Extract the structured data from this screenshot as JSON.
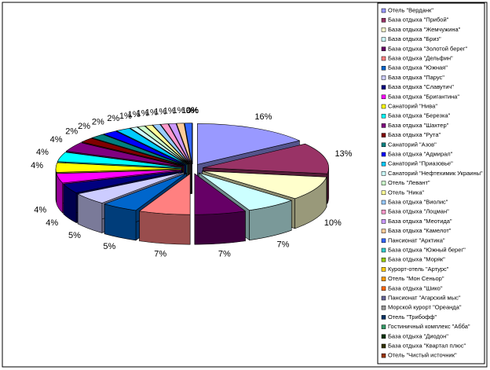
{
  "chart_data": {
    "type": "pie",
    "categories": [
      "Отель \"Верданк\"",
      "База отдыха \"Прибой\"",
      "База отдыха \"Жемчужина\"",
      "База отдыха \"Бриз\"",
      "База отдыха \"Золотой берег\"",
      "База отдыха \"Дельфин\"",
      "База отдыха \"Южная\"",
      "База отдыха \"Парус\"",
      "База отдыха \"Славутич\"",
      "База отдыха \"Бригантина\"",
      "Санаторий \"Нива\"",
      "База отдыха \"Березка\"",
      "База отдыха \"Шахтер\"",
      "База отдыха \"Рута\"",
      "Санаторий \"Азов\"",
      "База отдыха \"Адмирал\"",
      "Санаторий \"Приазовье\"",
      "Санаторий \"Нефтехимик Украины\"",
      "Отель \"Левант\"",
      "Отель \"Ника\"",
      "База отдыха \"Виолис\"",
      "База отдыха \"Лоцман\"",
      "База отдыха \"Меотида\"",
      "База отдыха \"Камелот\"",
      "Пансионат \"Арктика\"",
      "База отдыха \"Южный берег\"",
      "База отдыха \"Моряк\"",
      "Курорт-отель \"Артурс\"",
      "Отель \"Мон Сеньор\"",
      "База отдыха \"Шико\"",
      "Пансионат \"Агарский мыс\"",
      "Морской курорт \"Ореанда\"",
      "Отель \"Трибофф\"",
      "Гостиничный комплекс \"Абба\"",
      "База отдыха \"Диодон\"",
      "База отдыха \"Квартал плюс\"",
      "Отель \"Чистый источник\""
    ],
    "values": [
      16,
      13,
      10,
      7,
      7,
      7,
      5,
      5,
      4,
      4,
      4,
      4,
      4,
      2,
      2,
      2,
      2,
      1,
      1,
      1,
      1,
      1,
      1,
      1,
      1,
      0,
      0,
      0,
      0,
      0,
      0,
      0,
      0,
      0,
      0,
      0,
      0
    ],
    "value_labels": [
      "16%",
      "13%",
      "10%",
      "7%",
      "7%",
      "7%",
      "5%",
      "5%",
      "4%",
      "4%",
      "4%",
      "4%",
      "4%",
      "2%",
      "2%",
      "2%",
      "2%",
      "1%",
      "1%",
      "1%",
      "1%",
      "1%",
      "1%",
      "1%",
      "1%",
      "0%",
      "0%",
      "0%",
      "0%",
      "0%",
      "0%",
      "0%",
      "0%",
      "0%",
      "0%",
      "0%",
      "0%"
    ],
    "colors": [
      "#9999FF",
      "#993366",
      "#FFFFCC",
      "#CCFFFF",
      "#660066",
      "#FF8080",
      "#0066CC",
      "#CCCCFF",
      "#000080",
      "#FF00FF",
      "#FFFF00",
      "#00FFFF",
      "#800080",
      "#800000",
      "#008080",
      "#0000FF",
      "#00CCFF",
      "#CCFFFF",
      "#CCFFCC",
      "#FFFF99",
      "#99CCFF",
      "#FF99CC",
      "#CC99FF",
      "#FFCC99",
      "#3366FF",
      "#33CCCC",
      "#99CC00",
      "#FFCC00",
      "#FF9900",
      "#FF6600",
      "#666699",
      "#969696",
      "#003366",
      "#339966",
      "#003300",
      "#333300",
      "#993300"
    ],
    "legend_position": "right"
  }
}
